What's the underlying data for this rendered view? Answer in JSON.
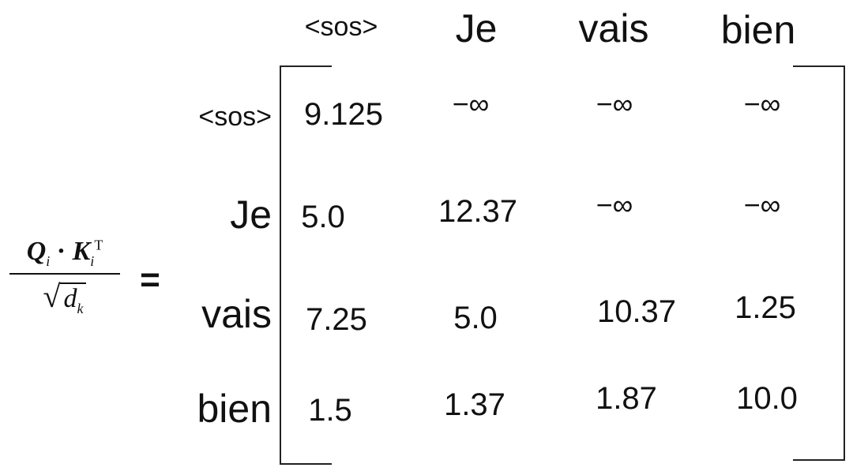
{
  "formula": {
    "q": "Q",
    "q_sub": "i",
    "dot": "·",
    "k": "K",
    "k_sub": "i",
    "k_sup": "T",
    "sqrt": "√",
    "d": "d",
    "d_sub": "k",
    "equals": "="
  },
  "columns": [
    "<sos>",
    "Je",
    "vais",
    "bien"
  ],
  "rows": [
    {
      "label": "<sos>",
      "values": [
        "9.125",
        "−∞",
        "−∞",
        "−∞"
      ]
    },
    {
      "label": "Je",
      "values": [
        "5.0",
        "12.37",
        "−∞",
        "−∞"
      ]
    },
    {
      "label": "vais",
      "values": [
        "7.25",
        "5.0",
        "10.37",
        "1.25"
      ]
    },
    {
      "label": "bien",
      "values": [
        "1.5",
        "1.37",
        "1.87",
        "10.0"
      ]
    }
  ]
}
